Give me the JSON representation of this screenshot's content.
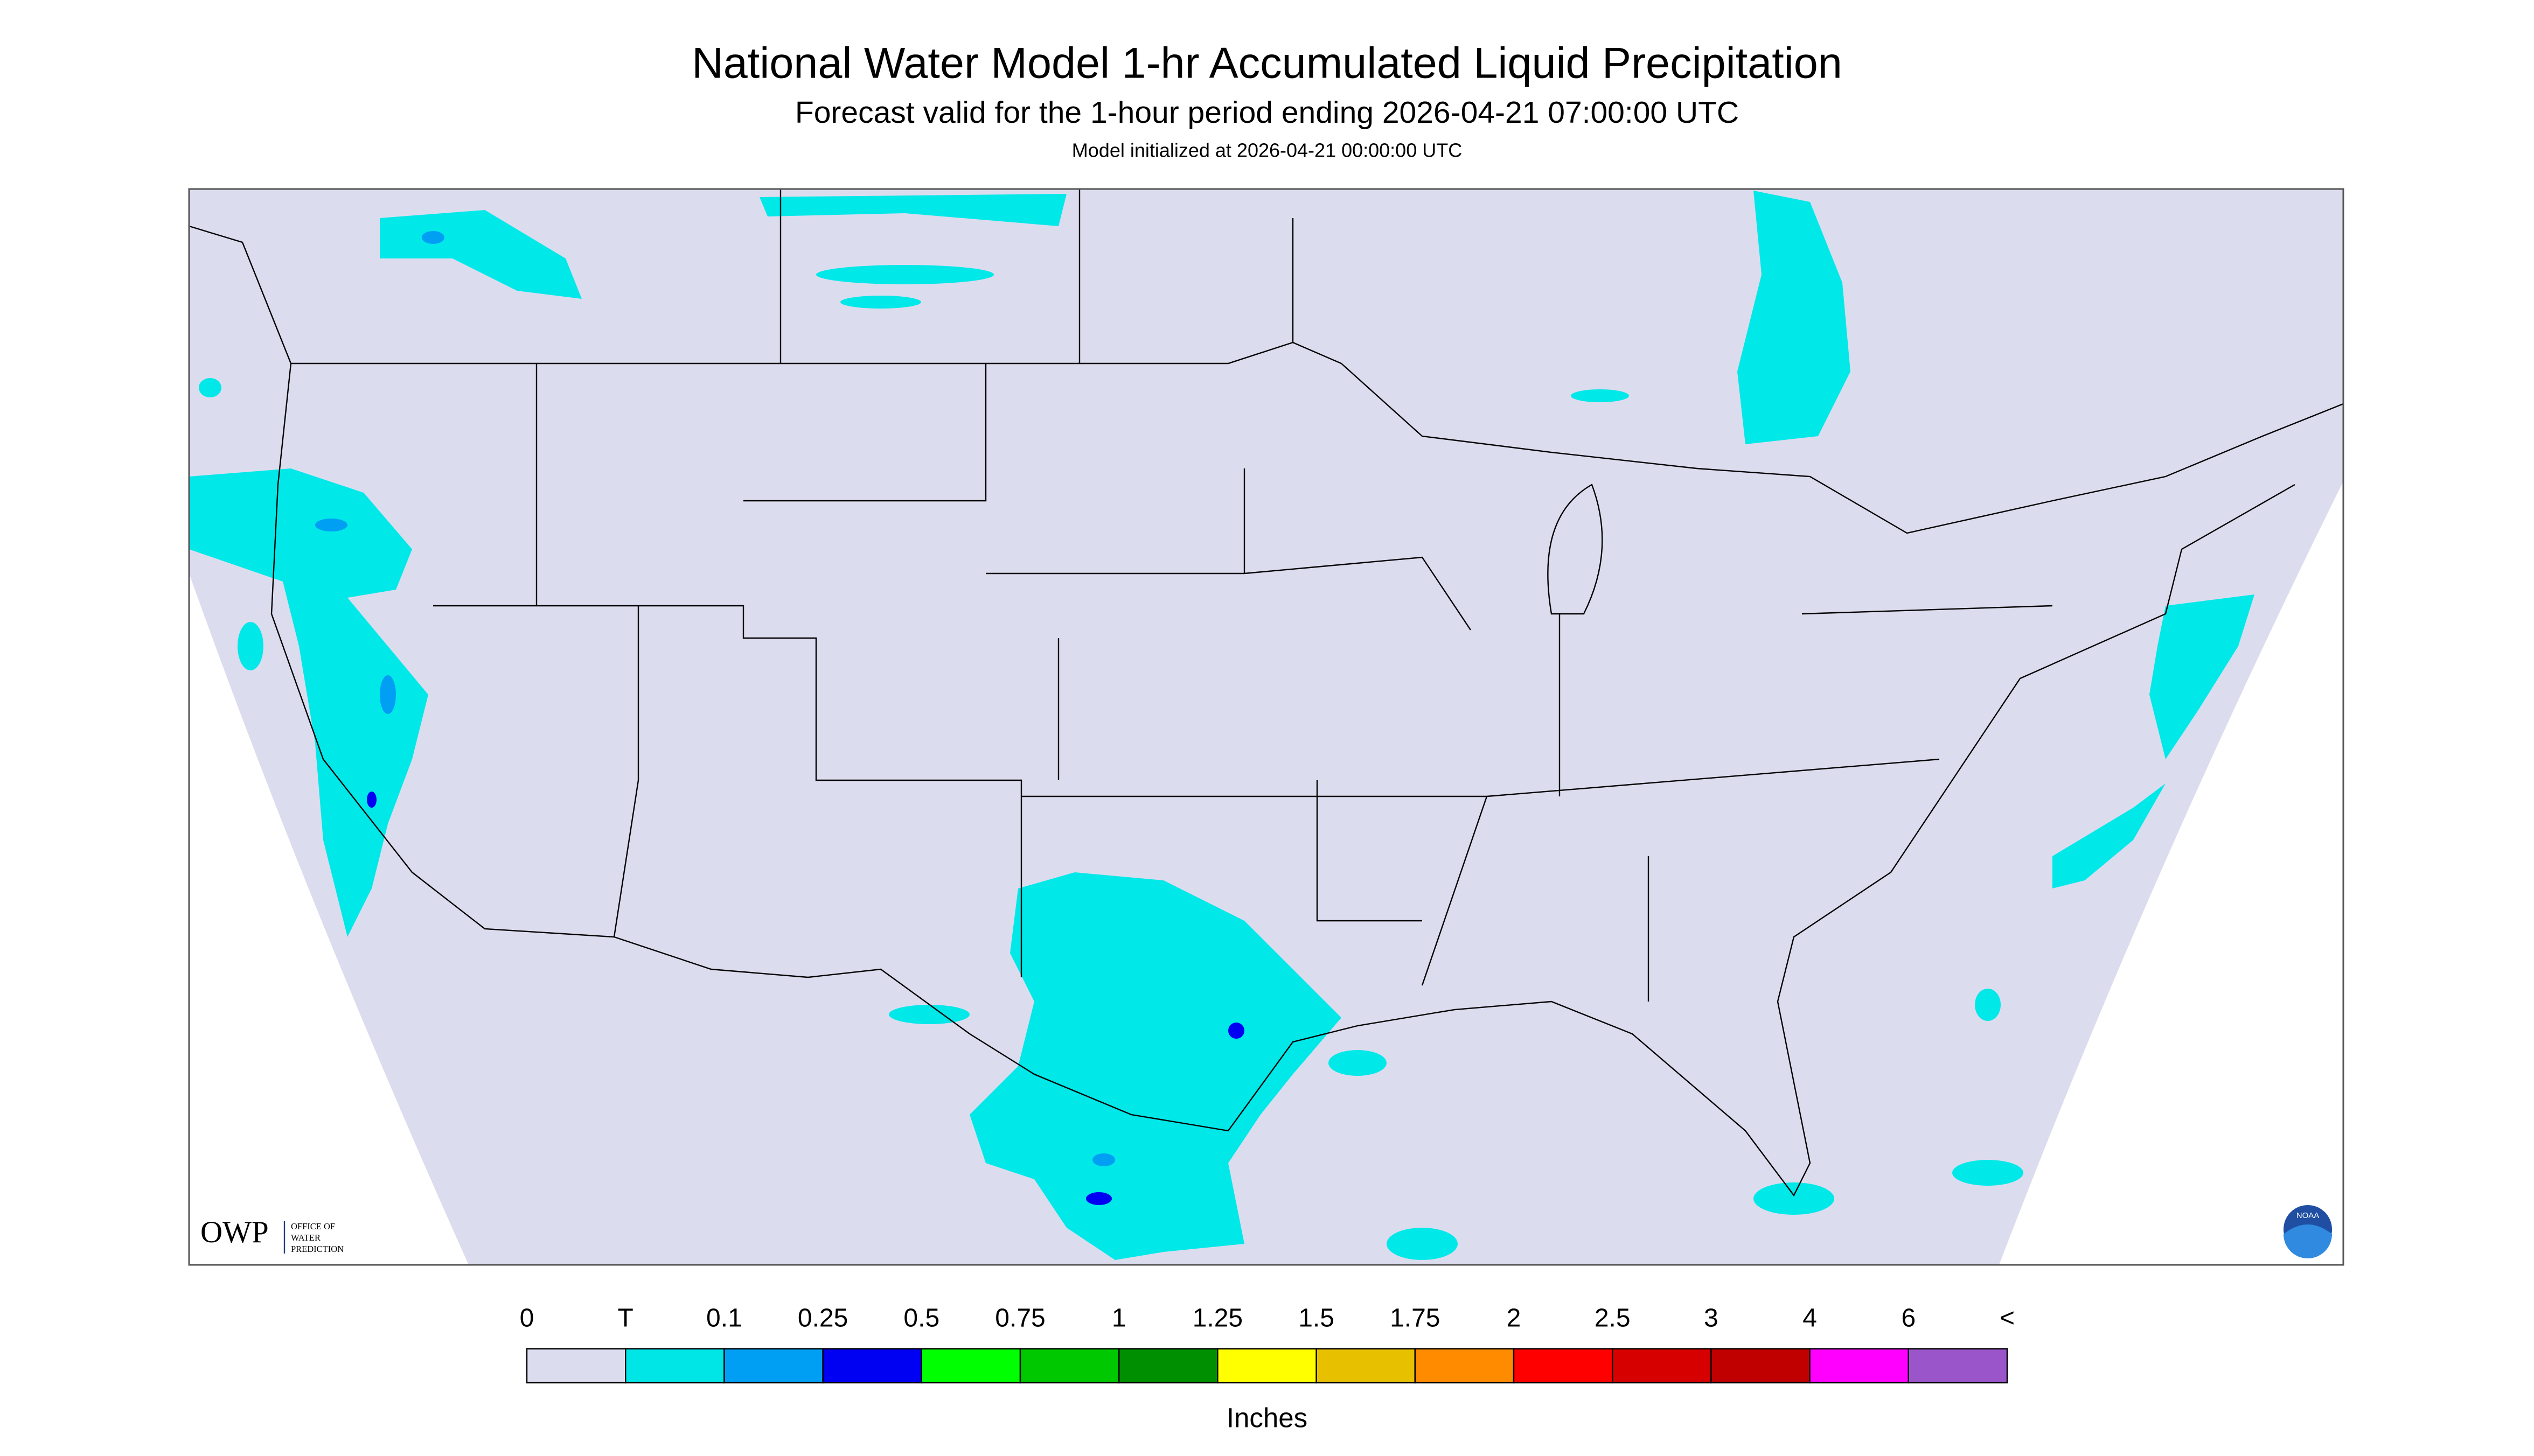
{
  "header": {
    "title": "National Water Model 1-hr Accumulated Liquid Precipitation",
    "subtitle": "Forecast valid for the 1-hour period ending 2026-04-21 07:00:00 UTC",
    "note": "Model initialized at 2026-04-21 00:00:00 UTC"
  },
  "legend": {
    "labels": [
      "0",
      "T",
      "0.1",
      "0.25",
      "0.5",
      "0.75",
      "1",
      "1.25",
      "1.5",
      "1.75",
      "2",
      "2.5",
      "3",
      "4",
      "6",
      "<"
    ],
    "colors": [
      "#dcdcef",
      "#00e6e6",
      "#019ff4",
      "#0000f2",
      "#00ff00",
      "#00c800",
      "#008f00",
      "#ffff00",
      "#e7c000",
      "#ff8c00",
      "#ff0000",
      "#d60000",
      "#c00000",
      "#ff00ff",
      "#9955c9"
    ],
    "unit": "Inches"
  },
  "logo": {
    "name": "OWP",
    "lines": [
      "OFFICE OF",
      "WATER",
      "PREDICTION"
    ],
    "badge": "NOAA"
  }
}
